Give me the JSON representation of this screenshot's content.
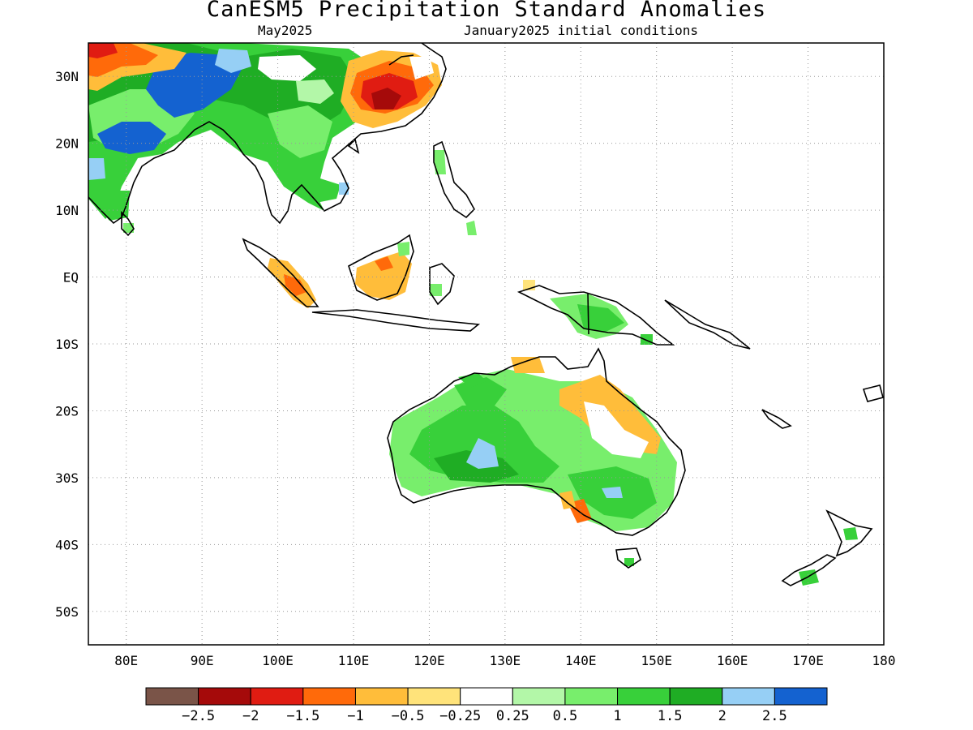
{
  "title": "CanESM5 Precipitation Standard Anomalies",
  "subtitle_left": "May2025",
  "subtitle_right": "January2025 initial conditions",
  "map": {
    "lon_range": [
      75,
      180
    ],
    "lat_range": [
      -55,
      35
    ],
    "lon_ticks": [
      {
        "value": 80,
        "label": "80E"
      },
      {
        "value": 90,
        "label": "90E"
      },
      {
        "value": 100,
        "label": "100E"
      },
      {
        "value": 110,
        "label": "110E"
      },
      {
        "value": 120,
        "label": "120E"
      },
      {
        "value": 130,
        "label": "130E"
      },
      {
        "value": 140,
        "label": "140E"
      },
      {
        "value": 150,
        "label": "150E"
      },
      {
        "value": 160,
        "label": "160E"
      },
      {
        "value": 170,
        "label": "170E"
      },
      {
        "value": 180,
        "label": "180"
      }
    ],
    "lat_ticks": [
      {
        "value": 30,
        "label": "30N"
      },
      {
        "value": 20,
        "label": "20N"
      },
      {
        "value": 10,
        "label": "10N"
      },
      {
        "value": 0,
        "label": "EQ"
      },
      {
        "value": -10,
        "label": "10S"
      },
      {
        "value": -20,
        "label": "20S"
      },
      {
        "value": -30,
        "label": "30S"
      },
      {
        "value": -40,
        "label": "40S"
      },
      {
        "value": -50,
        "label": "50S"
      }
    ],
    "grid": "dotted"
  },
  "colorbar": {
    "colors": [
      "#7a5448",
      "#a50a0a",
      "#e01c12",
      "#ff6a0a",
      "#ffbd3a",
      "#ffe37a",
      "#ffffff",
      "#b3f7a8",
      "#78ee6c",
      "#38d03a",
      "#1fad24",
      "#96cff5",
      "#1462d0"
    ],
    "labels": [
      "−2.5",
      "−2",
      "−1.5",
      "−1",
      "−0.5",
      "−0.25",
      "0.25",
      "0.5",
      "1",
      "1.5",
      "2",
      "2.5"
    ]
  }
}
